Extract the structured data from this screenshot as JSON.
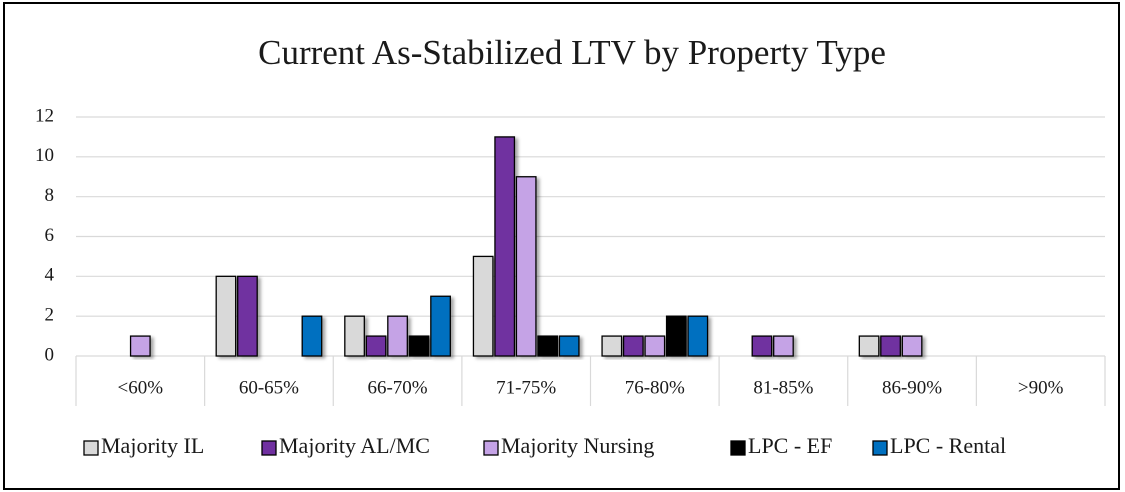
{
  "chart_data": {
    "type": "bar",
    "title": "Current As-Stabilized LTV by Property Type",
    "categories": [
      "<60%",
      "60-65%",
      "66-70%",
      "71-75%",
      "76-80%",
      "81-85%",
      "86-90%",
      ">90%"
    ],
    "series": [
      {
        "name": "Majority IL",
        "color": "#d9d9d9",
        "values": [
          0,
          4,
          2,
          5,
          1,
          0,
          1,
          0
        ]
      },
      {
        "name": "Majority AL/MC",
        "color": "#7030a0",
        "values": [
          0,
          4,
          1,
          11,
          1,
          1,
          1,
          0
        ]
      },
      {
        "name": "Majority Nursing",
        "color": "#c5a3e6",
        "values": [
          1,
          0,
          2,
          9,
          1,
          1,
          1,
          0
        ]
      },
      {
        "name": "LPC - EF",
        "color": "#000000",
        "values": [
          0,
          0,
          1,
          1,
          2,
          0,
          0,
          0
        ]
      },
      {
        "name": "LPC - Rental",
        "color": "#0070c0",
        "values": [
          0,
          2,
          3,
          1,
          2,
          0,
          0,
          0
        ]
      }
    ],
    "ylim": [
      0,
      12
    ],
    "yticks": [
      0,
      2,
      4,
      6,
      8,
      10,
      12
    ],
    "grid": true,
    "legend": "bottom"
  }
}
